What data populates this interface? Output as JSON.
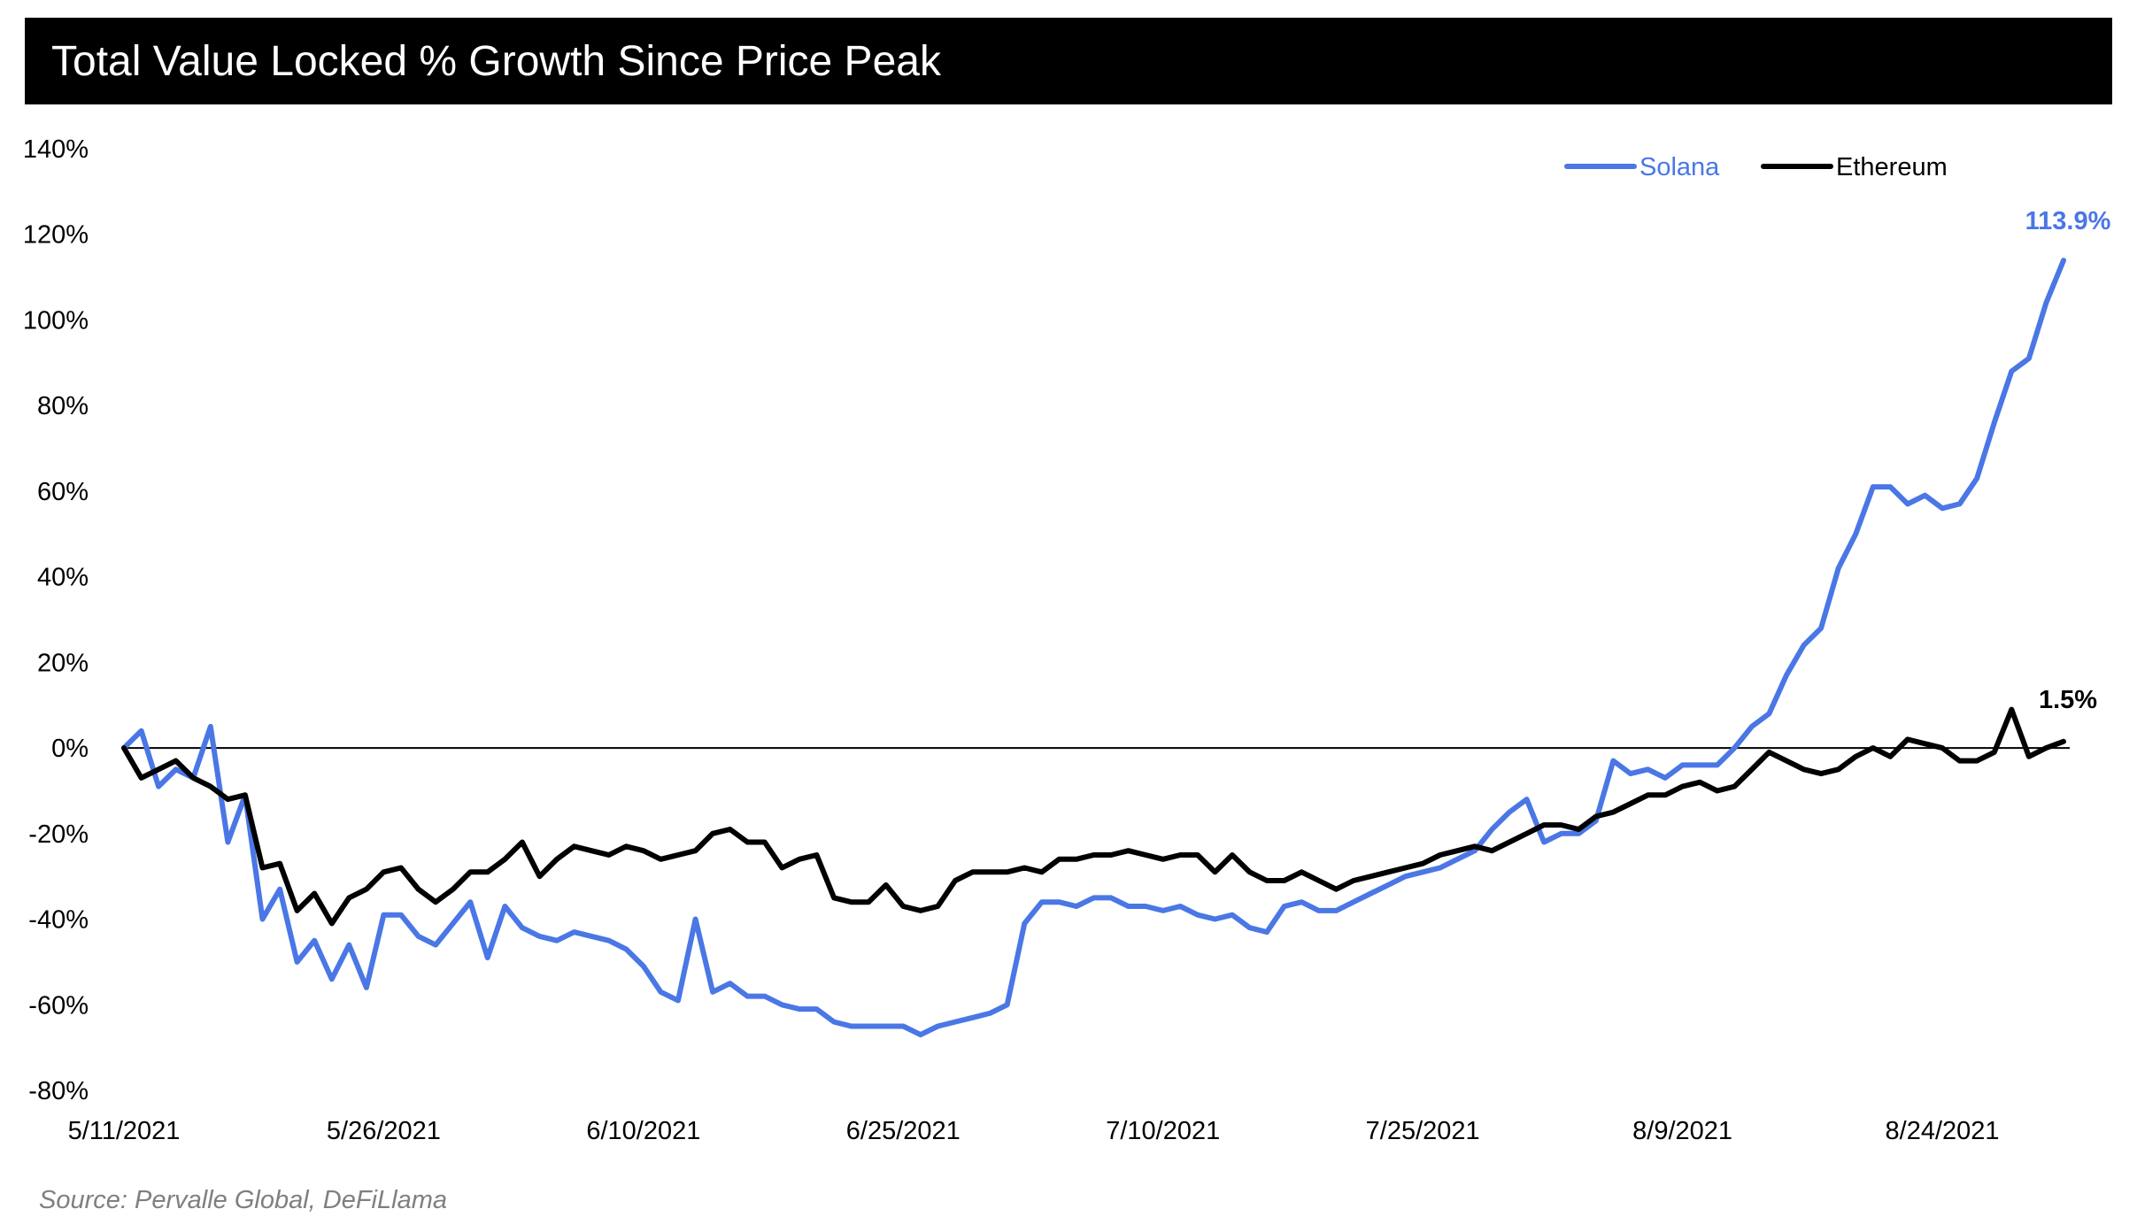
{
  "title": "Total Value Locked % Growth Since Price Peak",
  "source": "Source: Pervalle Global, DeFiLlama",
  "colors": {
    "solana": "#4a77e5",
    "ethereum": "#000000",
    "title_bg": "#000000",
    "source": "#7f7f7f"
  },
  "chart_data": {
    "type": "line",
    "title": "Total Value Locked % Growth Since Price Peak",
    "xlabel": "",
    "ylabel": "",
    "ylim": [
      -80,
      140
    ],
    "yticks": [
      140,
      120,
      100,
      80,
      60,
      40,
      20,
      0,
      -20,
      -40,
      -60,
      -80
    ],
    "ytick_labels": [
      "140%",
      "120%",
      "100%",
      "80%",
      "60%",
      "40%",
      "20%",
      "0%",
      "-20%",
      "-40%",
      "-60%",
      "-80%"
    ],
    "x_start": "5/11/2021",
    "x_end": "8/31/2021",
    "xtick_labels": [
      "5/11/2021",
      "5/26/2021",
      "6/10/2021",
      "6/25/2021",
      "7/10/2021",
      "7/25/2021",
      "8/9/2021",
      "8/24/2021"
    ],
    "grid": false,
    "legend_position": "top-right",
    "series": [
      {
        "name": "Solana",
        "color": "#4a77e5",
        "end_label": "113.9%",
        "values": [
          0,
          4,
          -9,
          -5,
          -7,
          5,
          -22,
          -11,
          -40,
          -33,
          -50,
          -45,
          -54,
          -46,
          -56,
          -39,
          -39,
          -44,
          -46,
          -41,
          -36,
          -49,
          -37,
          -42,
          -44,
          -45,
          -43,
          -44,
          -45,
          -47,
          -51,
          -57,
          -59,
          -40,
          -57,
          -55,
          -58,
          -58,
          -60,
          -61,
          -61,
          -64,
          -65,
          -65,
          -65,
          -65,
          -67,
          -65,
          -64,
          -63,
          -62,
          -60,
          -41,
          -36,
          -36,
          -37,
          -35,
          -35,
          -37,
          -37,
          -38,
          -37,
          -39,
          -40,
          -39,
          -42,
          -43,
          -37,
          -36,
          -38,
          -38,
          -36,
          -34,
          -32,
          -30,
          -29,
          -28,
          -26,
          -24,
          -19,
          -15,
          -12,
          -22,
          -20,
          -20,
          -17,
          -3,
          -6,
          -5,
          -7,
          -4,
          -4,
          -4,
          0,
          5,
          8,
          17,
          24,
          28,
          42,
          50,
          61,
          61,
          57,
          59,
          56,
          57,
          63,
          76,
          88,
          91,
          104,
          113.9
        ]
      },
      {
        "name": "Ethereum",
        "color": "#000000",
        "end_label": "1.5%",
        "values": [
          0,
          -7,
          -5,
          -3,
          -7,
          -9,
          -12,
          -11,
          -28,
          -27,
          -38,
          -34,
          -41,
          -35,
          -33,
          -29,
          -28,
          -33,
          -36,
          -33,
          -29,
          -29,
          -26,
          -22,
          -30,
          -26,
          -23,
          -24,
          -25,
          -23,
          -24,
          -26,
          -25,
          -24,
          -20,
          -19,
          -22,
          -22,
          -28,
          -26,
          -25,
          -35,
          -36,
          -36,
          -32,
          -37,
          -38,
          -37,
          -31,
          -29,
          -29,
          -29,
          -28,
          -29,
          -26,
          -26,
          -25,
          -25,
          -24,
          -25,
          -26,
          -25,
          -25,
          -29,
          -25,
          -29,
          -31,
          -31,
          -29,
          -31,
          -33,
          -31,
          -30,
          -29,
          -28,
          -27,
          -25,
          -24,
          -23,
          -24,
          -22,
          -20,
          -18,
          -18,
          -19,
          -16,
          -15,
          -13,
          -11,
          -11,
          -9,
          -8,
          -10,
          -9,
          -5,
          -1,
          -3,
          -5,
          -6,
          -5,
          -2,
          0,
          -2,
          2,
          1,
          0,
          -3,
          -3,
          -1,
          9,
          -2,
          0,
          1.5
        ]
      }
    ]
  }
}
